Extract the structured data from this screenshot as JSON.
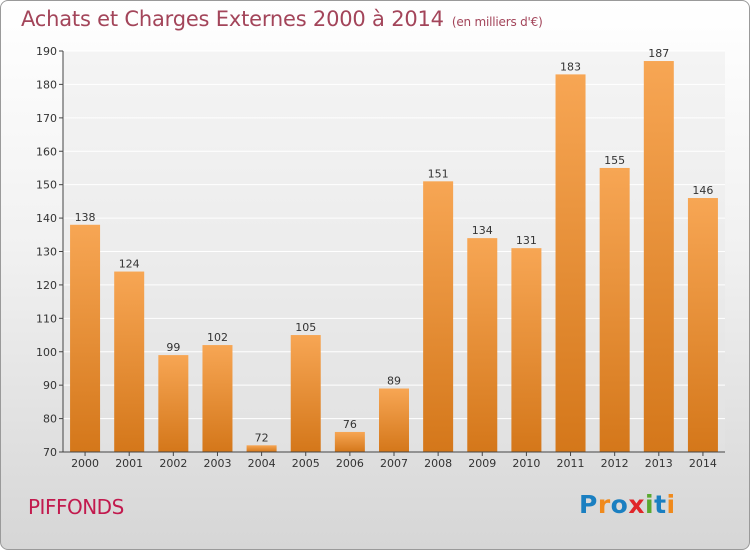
{
  "header": {
    "title": "Achats et Charges Externes 2000 à 2014",
    "unit": "(en milliers d'€)"
  },
  "footer": {
    "commune": "PIFFONDS",
    "logo": {
      "text": "Proxiti",
      "letters": [
        {
          "char": "P",
          "color": "#1a7fc1"
        },
        {
          "char": "r",
          "color": "#f08a1c"
        },
        {
          "char": "o",
          "color": "#1a7fc1"
        },
        {
          "char": "x",
          "color": "#e0262a"
        },
        {
          "char": "i",
          "color": "#5aa92f"
        },
        {
          "char": "t",
          "color": "#1a7fc1"
        },
        {
          "char": "i",
          "color": "#f08a1c"
        }
      ]
    }
  },
  "chart_data": {
    "type": "bar",
    "title": "Achats et Charges Externes 2000 à 2014",
    "subtitle": "(en milliers d'€)",
    "xlabel": "",
    "ylabel": "",
    "categories": [
      "2000",
      "2001",
      "2002",
      "2003",
      "2004",
      "2005",
      "2006",
      "2007",
      "2008",
      "2009",
      "2010",
      "2011",
      "2012",
      "2013",
      "2014"
    ],
    "values": [
      138,
      124,
      99,
      102,
      72,
      105,
      76,
      89,
      151,
      134,
      131,
      183,
      155,
      187,
      146
    ],
    "ylim": [
      70,
      190
    ],
    "yticks": [
      70,
      80,
      90,
      100,
      110,
      120,
      130,
      140,
      150,
      160,
      170,
      180,
      190
    ],
    "grid": true,
    "legend": "none",
    "colors": {
      "bar_light": "#f7a654",
      "bar_dark": "#d4771a",
      "grid": "#ffffff",
      "axis": "#444444"
    }
  }
}
